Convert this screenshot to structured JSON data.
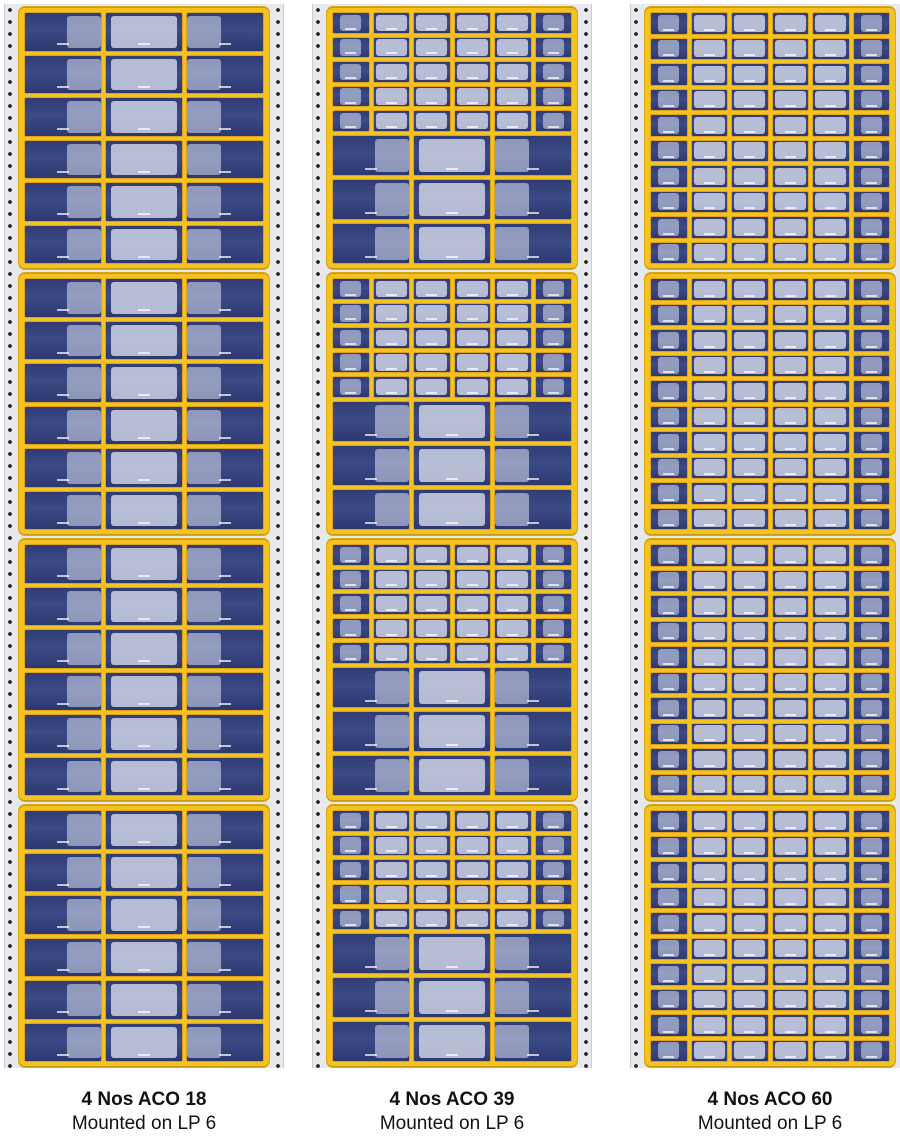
{
  "columns": [
    {
      "id": "aco18",
      "rows_per_cabinet": [
        3,
        3,
        3,
        3,
        3,
        3
      ],
      "title": "4 Nos ACO 18",
      "subtitle": "Mounted on LP 6"
    },
    {
      "id": "aco39",
      "rows_per_cabinet": [
        6,
        6,
        6,
        6,
        6,
        3,
        3,
        3
      ],
      "title": "4 Nos ACO 39",
      "subtitle": "Mounted on LP 6"
    },
    {
      "id": "aco60",
      "rows_per_cabinet": [
        6,
        6,
        6,
        6,
        6,
        6,
        6,
        6,
        6,
        6
      ],
      "title": "4 Nos ACO 60",
      "subtitle": "Mounted on LP 6"
    }
  ],
  "cabinets_per_column": 4,
  "colors": {
    "frame": "#f5c321",
    "drawer": "#33407a",
    "panel": "#e7e9ec"
  }
}
